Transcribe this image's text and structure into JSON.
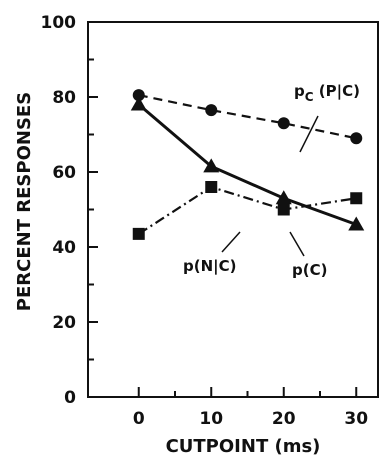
{
  "chart_data": {
    "type": "line",
    "title": "",
    "xlabel": "CUTPOINT (ms)",
    "ylabel": "PERCENT RESPONSES",
    "xlim": [
      -7,
      33
    ],
    "ylim": [
      0,
      100
    ],
    "xticks": [
      0,
      10,
      20,
      30
    ],
    "yticks": [
      0,
      20,
      40,
      60,
      80,
      100
    ],
    "grid": false,
    "x": [
      0,
      10,
      20,
      30
    ],
    "series": [
      {
        "name": "pC(P|C)",
        "label_main": "p",
        "label_sub": "C",
        "label_rest": " (P|C)",
        "values": [
          80.5,
          76.5,
          73,
          69
        ],
        "marker": "circle",
        "dash": "dashed",
        "color": "#111111"
      },
      {
        "name": "p(C)",
        "label_main": "p(C)",
        "values": [
          78,
          61.5,
          53,
          46
        ],
        "marker": "triangle",
        "dash": "solid",
        "color": "#111111"
      },
      {
        "name": "p(N|C)",
        "label_main": "p(N|C)",
        "values": [
          43.5,
          56,
          50,
          53
        ],
        "marker": "square",
        "dash": "dashdot",
        "color": "#111111"
      }
    ]
  }
}
